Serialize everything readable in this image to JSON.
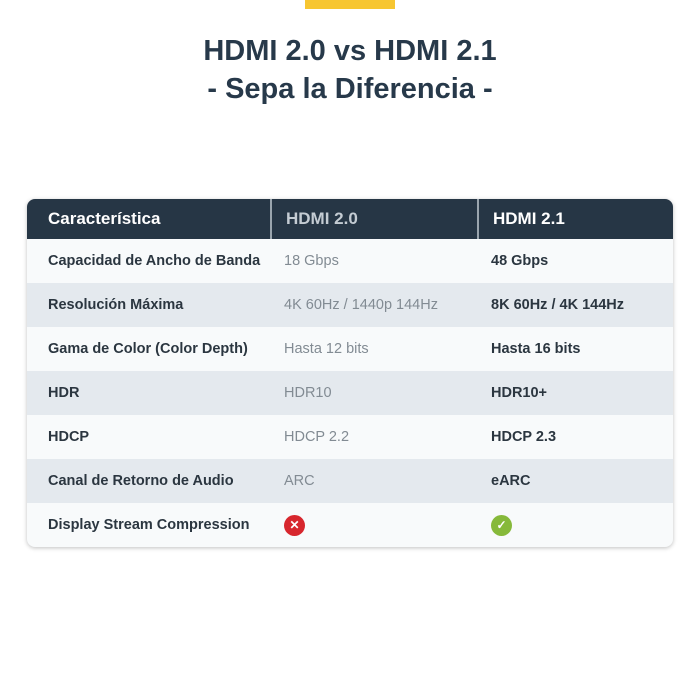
{
  "title": {
    "line1": "HDMI 2.0 vs HDMI 2.1",
    "line2": "- Sepa la Diferencia -"
  },
  "colors": {
    "accent": "#f7c631",
    "header": "#263645",
    "cross": "#d7262d",
    "check": "#86b93a"
  },
  "table": {
    "headers": [
      "Característica",
      "HDMI 2.0",
      "HDMI 2.1"
    ],
    "rows": [
      [
        "Capacidad de Ancho de Banda",
        "18 Gbps",
        "48 Gbps"
      ],
      [
        "Resolución Máxima",
        "4K 60Hz / 1440p 144Hz",
        "8K 60Hz / 4K 144Hz"
      ],
      [
        "Gama de Color (Color Depth)",
        "Hasta 12 bits",
        "Hasta 16 bits"
      ],
      [
        "HDR",
        "HDR10",
        "HDR10+"
      ],
      [
        "HDCP",
        "HDCP 2.2",
        "HDCP 2.3"
      ],
      [
        "Canal de Retorno de Audio",
        "ARC",
        "eARC"
      ]
    ],
    "last_row": {
      "label": "Display Stream Compression",
      "hdmi20": "cross-icon",
      "hdmi21": "check-icon"
    }
  }
}
